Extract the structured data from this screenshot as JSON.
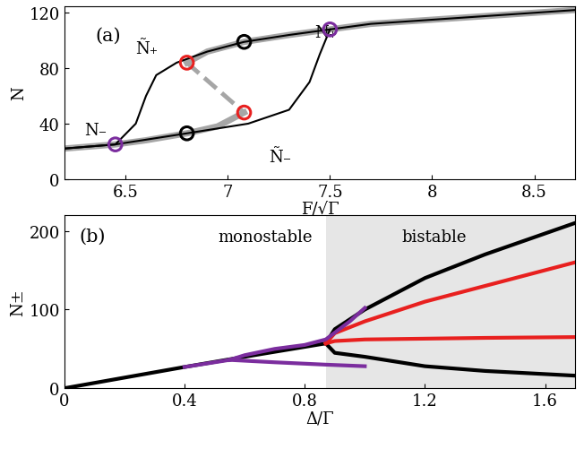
{
  "chart_data": [
    {
      "type": "line",
      "panel_label": "(a)",
      "x_label": "F/√Γ",
      "y_label": "N",
      "xlim": [
        6.2,
        8.7
      ],
      "xticks": [
        6.5,
        7,
        7.5,
        8,
        8.5
      ],
      "ylim": [
        0,
        125
      ],
      "yticks": [
        0,
        40,
        80,
        120
      ],
      "annotations": [
        "Ñ₊",
        "Ñ₋",
        "N₋",
        "N₊"
      ],
      "series": [
        {
          "type": "line",
          "color": "#a6a6a6",
          "line_style": "solid",
          "x": [
            6.2,
            6.45,
            6.6,
            6.8,
            6.95,
            7.08
          ],
          "values": [
            22,
            25,
            28,
            33,
            38,
            48
          ]
        },
        {
          "type": "line",
          "color": "#a6a6a6",
          "line_style": "solid",
          "x": [
            6.8,
            6.9,
            7.08,
            7.3,
            7.5,
            7.7,
            8.0,
            8.3,
            8.7
          ],
          "values": [
            84,
            92,
            99,
            104,
            108,
            112,
            115,
            118,
            122
          ]
        },
        {
          "type": "line",
          "color": "#a6a6a6",
          "line_style": "dashed",
          "x": [
            6.8,
            7.08
          ],
          "values": [
            84,
            48
          ]
        },
        {
          "type": "line",
          "color": "#000000",
          "line_style": "solid",
          "x": [
            6.2,
            6.45,
            6.8,
            7.1,
            7.3,
            7.4,
            7.45,
            7.5,
            7.7,
            8.0,
            8.3,
            8.7
          ],
          "values": [
            22,
            25,
            33,
            40,
            50,
            70,
            90,
            108,
            112,
            115,
            118,
            122
          ]
        },
        {
          "type": "line",
          "color": "#000000",
          "line_style": "solid",
          "x": [
            6.2,
            6.45,
            6.55,
            6.6,
            6.65,
            6.75,
            6.9,
            7.08,
            7.3,
            7.5
          ],
          "values": [
            22,
            25,
            40,
            60,
            75,
            84,
            92,
            99,
            104,
            108
          ]
        },
        {
          "type": "scatter",
          "color": "#e8201f",
          "marker": "o",
          "x": [
            6.8,
            7.08
          ],
          "values": [
            84,
            48
          ]
        },
        {
          "type": "scatter",
          "color": "#000000",
          "marker": "o",
          "x": [
            7.08,
            6.8
          ],
          "values": [
            99,
            33
          ]
        },
        {
          "type": "scatter",
          "color": "#7b2d9e",
          "marker": "o",
          "x": [
            6.45,
            7.5
          ],
          "values": [
            25,
            108
          ]
        }
      ]
    },
    {
      "type": "line",
      "panel_label": "(b)",
      "x_label": "Δ/Γ",
      "y_label": "N±",
      "xlim": [
        0,
        1.7
      ],
      "xticks": [
        0,
        0.4,
        0.8,
        1.2,
        1.6
      ],
      "ylim": [
        0,
        220
      ],
      "yticks": [
        0,
        100,
        200
      ],
      "shaded_region": [
        0.87,
        1.7
      ],
      "region_labels": [
        "monostable",
        "bistable"
      ],
      "series": [
        {
          "type": "line",
          "color": "#000000",
          "line_style": "solid",
          "x": [
            0,
            0.4,
            0.6,
            0.87
          ],
          "values": [
            0,
            27,
            40,
            57
          ]
        },
        {
          "type": "line",
          "color": "#000000",
          "line_style": "solid",
          "x": [
            0.87,
            0.9,
            1.0,
            1.2,
            1.4,
            1.7
          ],
          "values": [
            57,
            75,
            100,
            140,
            170,
            210
          ]
        },
        {
          "type": "line",
          "color": "#000000",
          "line_style": "solid",
          "x": [
            0.87,
            0.9,
            1.0,
            1.2,
            1.4,
            1.7
          ],
          "values": [
            57,
            45,
            40,
            28,
            22,
            16
          ]
        },
        {
          "type": "line",
          "color": "#e8201f",
          "line_style": "solid",
          "x": [
            0.87,
            0.9,
            1.0,
            1.2,
            1.4,
            1.7
          ],
          "values": [
            57,
            70,
            85,
            110,
            130,
            160
          ]
        },
        {
          "type": "line",
          "color": "#e8201f",
          "line_style": "solid",
          "x": [
            0.87,
            0.9,
            1.0,
            1.2,
            1.4,
            1.7
          ],
          "values": [
            57,
            60,
            62,
            63,
            64,
            65
          ]
        },
        {
          "type": "line",
          "color": "#7b2d9e",
          "line_style": "solid",
          "x": [
            0.4,
            0.55
          ],
          "values": [
            27,
            36
          ]
        },
        {
          "type": "line",
          "color": "#7b2d9e",
          "line_style": "solid",
          "x": [
            0.55,
            0.6,
            0.7,
            0.8,
            0.87,
            0.95,
            1.0
          ],
          "values": [
            36,
            42,
            50,
            55,
            62,
            85,
            102
          ]
        },
        {
          "type": "line",
          "color": "#7b2d9e",
          "line_style": "solid",
          "x": [
            0.55,
            0.7,
            0.87,
            1.0
          ],
          "values": [
            36,
            33,
            30,
            28
          ]
        }
      ]
    }
  ]
}
